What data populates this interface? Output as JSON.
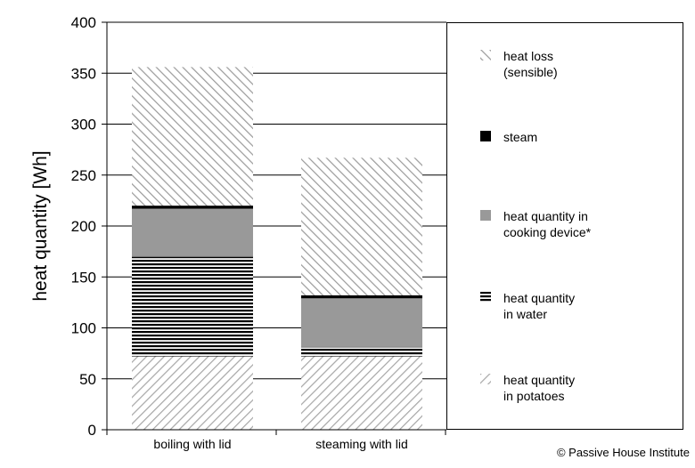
{
  "chart_data": {
    "type": "bar",
    "stacked": true,
    "title": "",
    "xlabel": "",
    "ylabel": "heat quantity [Wh]",
    "ylim": [
      0,
      400
    ],
    "yticks": [
      0,
      50,
      100,
      150,
      200,
      250,
      300,
      350,
      400
    ],
    "grid": true,
    "legend_position": "right",
    "categories": [
      "boiling with lid",
      "steaming with lid"
    ],
    "series": [
      {
        "name": "heat quantity\nin potatoes",
        "values": [
          72,
          72
        ],
        "pattern": "diag-light",
        "color": "#9a9a9a"
      },
      {
        "name": "heat quantity\nin water",
        "values": [
          98,
          9
        ],
        "pattern": "hlines",
        "color": "#000000"
      },
      {
        "name": "heat quantity in\ncooking device*",
        "values": [
          47,
          48
        ],
        "pattern": "solid",
        "color": "#999999"
      },
      {
        "name": "steam",
        "values": [
          3,
          3
        ],
        "pattern": "solid",
        "color": "#000000"
      },
      {
        "name": "heat loss\n(sensible)",
        "values": [
          136,
          135
        ],
        "pattern": "diag-dark",
        "color": "#9a9a9a"
      }
    ]
  },
  "credit": "© Passive House Institute"
}
